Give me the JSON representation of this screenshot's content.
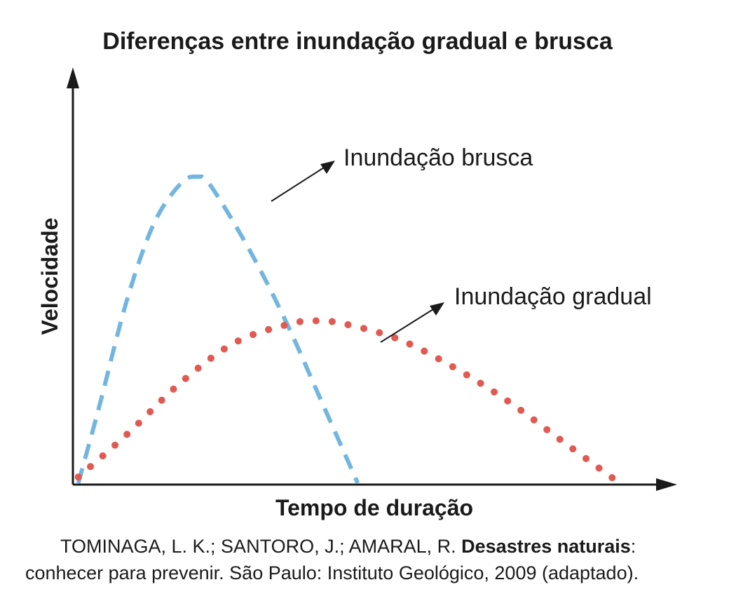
{
  "chart_data": {
    "type": "line",
    "title": "Diferenças entre inundação gradual e brusca",
    "xlabel": "Tempo de duração",
    "ylabel": "Velocidade",
    "xlim": [
      0,
      100
    ],
    "ylim": [
      0,
      100
    ],
    "grid": false,
    "legend": "none",
    "series": [
      {
        "name": "Inundação brusca",
        "style": "dashed",
        "color": "#72b6df",
        "x": [
          1,
          5,
          10,
          15,
          20,
          23,
          25,
          30,
          35,
          40,
          45,
          50,
          52.5
        ],
        "y": [
          0,
          26,
          60,
          85,
          98,
          100,
          98,
          84,
          68,
          50,
          30,
          10,
          0
        ]
      },
      {
        "name": "Inundação gradual",
        "style": "dotted",
        "color": "#e05a52",
        "x": [
          1,
          10,
          20,
          30,
          40,
          45,
          50,
          60,
          70,
          80,
          90,
          100
        ],
        "y": [
          2,
          16,
          33,
          46,
          52,
          53,
          52,
          47,
          38,
          27,
          14,
          1
        ]
      }
    ],
    "annotations": [
      {
        "text": "Inundação brusca",
        "series": 0
      },
      {
        "text": "Inundação gradual",
        "series": 1
      }
    ]
  },
  "source": {
    "line1_prefix": "TOMINAGA, L. K.; SANTORO, J.; AMARAL, R. ",
    "line1_bold": "Desastres naturais",
    "line1_suffix": ":",
    "line2": "conhecer para prevenir. São Paulo: Instituto Geológico, 2009 (adaptado)."
  }
}
